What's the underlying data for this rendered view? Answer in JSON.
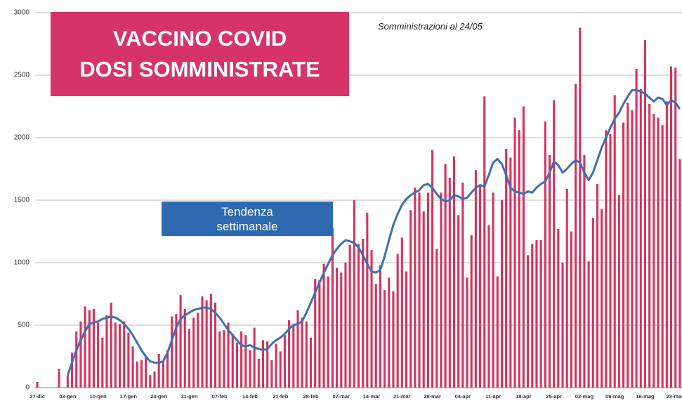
{
  "chart_data": {
    "type": "bar",
    "title": [
      "VACCINO COVID",
      "DOSI SOMMINISTRATE"
    ],
    "subtitle": "Somministrazioni al 24/05",
    "categories": [
      "27-dic",
      null,
      null,
      null,
      null,
      null,
      null,
      "03-gen",
      null,
      null,
      null,
      null,
      null,
      null,
      "10-gen",
      null,
      null,
      null,
      null,
      null,
      null,
      "17-gen",
      null,
      null,
      null,
      null,
      null,
      null,
      "24-gen",
      null,
      null,
      null,
      null,
      null,
      null,
      "31-gen",
      null,
      null,
      null,
      null,
      null,
      null,
      "07-feb",
      null,
      null,
      null,
      null,
      null,
      null,
      "14-feb",
      null,
      null,
      null,
      null,
      null,
      null,
      "21-feb",
      null,
      null,
      null,
      null,
      null,
      null,
      "28-feb",
      null,
      null,
      null,
      null,
      null,
      null,
      "07-mar",
      null,
      null,
      null,
      null,
      null,
      null,
      "14-mar",
      null,
      null,
      null,
      null,
      null,
      null,
      "21-mar",
      null,
      null,
      null,
      null,
      null,
      null,
      "28-mar",
      null,
      null,
      null,
      null,
      null,
      null,
      "04-apr",
      null,
      null,
      null,
      null,
      null,
      null,
      "11-apr",
      null,
      null,
      null,
      null,
      null,
      null,
      "18-apr",
      null,
      null,
      null,
      null,
      null,
      null,
      "25-apr",
      null,
      null,
      null,
      null,
      null,
      null,
      "02-mag",
      null,
      null,
      null,
      null,
      null,
      null,
      "09-mag",
      null,
      null,
      null,
      null,
      null,
      null,
      "16-mag",
      null,
      null,
      null,
      null,
      null,
      null,
      "23-mag",
      null
    ],
    "values": [
      45,
      0,
      0,
      0,
      0,
      150,
      0,
      100,
      280,
      450,
      530,
      650,
      620,
      630,
      520,
      400,
      580,
      680,
      520,
      510,
      530,
      440,
      330,
      210,
      220,
      250,
      100,
      130,
      270,
      210,
      300,
      570,
      590,
      740,
      630,
      470,
      560,
      600,
      730,
      700,
      750,
      680,
      450,
      460,
      520,
      430,
      360,
      450,
      420,
      300,
      480,
      230,
      380,
      370,
      220,
      350,
      290,
      420,
      540,
      510,
      620,
      560,
      530,
      400,
      870,
      860,
      990,
      890,
      1280,
      960,
      920,
      1000,
      1140,
      1500,
      1150,
      1190,
      1400,
      1100,
      830,
      980,
      780,
      880,
      770,
      1070,
      1200,
      930,
      1420,
      1600,
      1560,
      1410,
      1560,
      1900,
      1110,
      1560,
      1790,
      1680,
      1850,
      1380,
      1640,
      880,
      1220,
      1740,
      1610,
      2330,
      1300,
      1560,
      890,
      1500,
      1910,
      1840,
      2160,
      2060,
      2250,
      1060,
      1150,
      1180,
      1180,
      2130,
      1860,
      2300,
      1270,
      1000,
      1590,
      1250,
      2430,
      2880,
      1860,
      1010,
      1360,
      1630,
      1430,
      2060,
      2030,
      2340,
      1540,
      2120,
      2280,
      2220,
      2550,
      2390,
      2780,
      2270,
      2190,
      2160,
      2100,
      2290,
      2570,
      2560,
      1830
    ],
    "color": "#d4335e",
    "trend": {
      "name": "Tendenza settimanale",
      "color": "#3d6fb3",
      "values": [
        null,
        null,
        null,
        null,
        null,
        null,
        null,
        100,
        200,
        300,
        380,
        450,
        510,
        520,
        530,
        550,
        560,
        570,
        560,
        540,
        510,
        470,
        420,
        360,
        300,
        250,
        210,
        200,
        200,
        210,
        280,
        380,
        480,
        550,
        580,
        600,
        620,
        630,
        640,
        640,
        630,
        600,
        560,
        510,
        460,
        420,
        380,
        340,
        330,
        340,
        320,
        310,
        300,
        310,
        350,
        380,
        400,
        430,
        470,
        500,
        510,
        530,
        600,
        680,
        760,
        840,
        920,
        990,
        1060,
        1110,
        1150,
        1180,
        1170,
        1160,
        1120,
        1060,
        990,
        930,
        920,
        940,
        1050,
        1180,
        1300,
        1390,
        1460,
        1510,
        1540,
        1560,
        1580,
        1620,
        1630,
        1600,
        1550,
        1510,
        1490,
        1500,
        1540,
        1530,
        1510,
        1520,
        1560,
        1600,
        1620,
        1610,
        1700,
        1800,
        1830,
        1790,
        1700,
        1600,
        1570,
        1560,
        1550,
        1570,
        1560,
        1600,
        1630,
        1650,
        1720,
        1810,
        1780,
        1720,
        1750,
        1790,
        1820,
        1800,
        1720,
        1660,
        1720,
        1820,
        1920,
        2000,
        2080,
        2150,
        2200,
        2270,
        2330,
        2380,
        2380,
        2370,
        2350,
        2320,
        2290,
        2320,
        2310,
        2260,
        2300,
        2280,
        2230
      ]
    },
    "ylim": [
      0,
      3000
    ],
    "yticks": [
      0,
      500,
      1000,
      1500,
      2000,
      2500,
      3000
    ],
    "grid": true
  }
}
